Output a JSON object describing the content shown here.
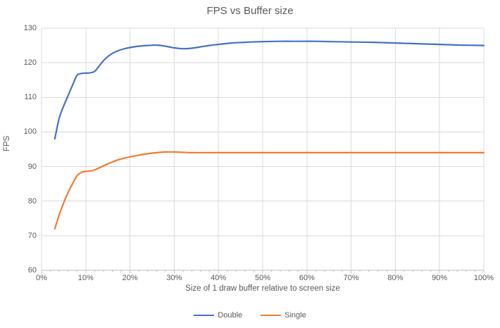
{
  "chart_data": {
    "type": "line",
    "title": "FPS vs Buffer size",
    "xlabel": "Size of 1 draw buffer relative to screen size",
    "ylabel": "FPS",
    "xlim": [
      0,
      100
    ],
    "ylim": [
      60,
      130
    ],
    "grid": true,
    "legend_position": "bottom-center",
    "x_tick_values": [
      0,
      10,
      20,
      30,
      40,
      50,
      60,
      70,
      80,
      90,
      100
    ],
    "x_tick_labels": [
      "0%",
      "10%",
      "20%",
      "30%",
      "40%",
      "50%",
      "60%",
      "70%",
      "80%",
      "90%",
      "100%"
    ],
    "x_minor_tick_step": 2,
    "y_tick_values": [
      60,
      70,
      80,
      90,
      100,
      110,
      120,
      130
    ],
    "y_tick_labels": [
      "60",
      "70",
      "80",
      "90",
      "100",
      "110",
      "120",
      "130"
    ],
    "series": [
      {
        "name": "Double",
        "color": "#4472C4",
        "points": [
          [
            3,
            98
          ],
          [
            4,
            104
          ],
          [
            5,
            107.5
          ],
          [
            6,
            110.5
          ],
          [
            7,
            113.5
          ],
          [
            8,
            116.3
          ],
          [
            9,
            116.9
          ],
          [
            10,
            117
          ],
          [
            11,
            117.1
          ],
          [
            12,
            117.5
          ],
          [
            13,
            119
          ],
          [
            14,
            120.6
          ],
          [
            15,
            121.8
          ],
          [
            16,
            122.7
          ],
          [
            17,
            123.3
          ],
          [
            18,
            123.8
          ],
          [
            20,
            124.4
          ],
          [
            22,
            124.8
          ],
          [
            24,
            125
          ],
          [
            26,
            125.1
          ],
          [
            28,
            124.8
          ],
          [
            30,
            124.3
          ],
          [
            32,
            124.05
          ],
          [
            34,
            124.2
          ],
          [
            36,
            124.6
          ],
          [
            38,
            125
          ],
          [
            40,
            125.3
          ],
          [
            43,
            125.7
          ],
          [
            46,
            125.9
          ],
          [
            50,
            126.1
          ],
          [
            54,
            126.2
          ],
          [
            58,
            126.2
          ],
          [
            62,
            126.2
          ],
          [
            66,
            126.1
          ],
          [
            70,
            126
          ],
          [
            75,
            125.9
          ],
          [
            80,
            125.7
          ],
          [
            85,
            125.5
          ],
          [
            90,
            125.3
          ],
          [
            95,
            125.1
          ],
          [
            100,
            125
          ]
        ]
      },
      {
        "name": "Single",
        "color": "#ED7D31",
        "points": [
          [
            3,
            72
          ],
          [
            4,
            76
          ],
          [
            5,
            79.5
          ],
          [
            6,
            82.5
          ],
          [
            7,
            85
          ],
          [
            8,
            87.3
          ],
          [
            9,
            88.3
          ],
          [
            10,
            88.6
          ],
          [
            11,
            88.7
          ],
          [
            12,
            89
          ],
          [
            13,
            89.6
          ],
          [
            14,
            90.2
          ],
          [
            15,
            90.8
          ],
          [
            16,
            91.3
          ],
          [
            17,
            91.8
          ],
          [
            18,
            92.2
          ],
          [
            20,
            92.8
          ],
          [
            22,
            93.3
          ],
          [
            24,
            93.7
          ],
          [
            26,
            94
          ],
          [
            28,
            94.2
          ],
          [
            30,
            94.2
          ],
          [
            32,
            94.1
          ],
          [
            34,
            94
          ],
          [
            38,
            94
          ],
          [
            45,
            94
          ],
          [
            50,
            94
          ],
          [
            60,
            94
          ],
          [
            70,
            94
          ],
          [
            80,
            94
          ],
          [
            90,
            94
          ],
          [
            100,
            94
          ]
        ]
      }
    ],
    "colors": {
      "background": "#FFFFFF",
      "gridline": "#D9D9D9",
      "axis_line": "#BFBFBF",
      "tick_mark": "#BFBFBF",
      "text": "#595959"
    }
  }
}
